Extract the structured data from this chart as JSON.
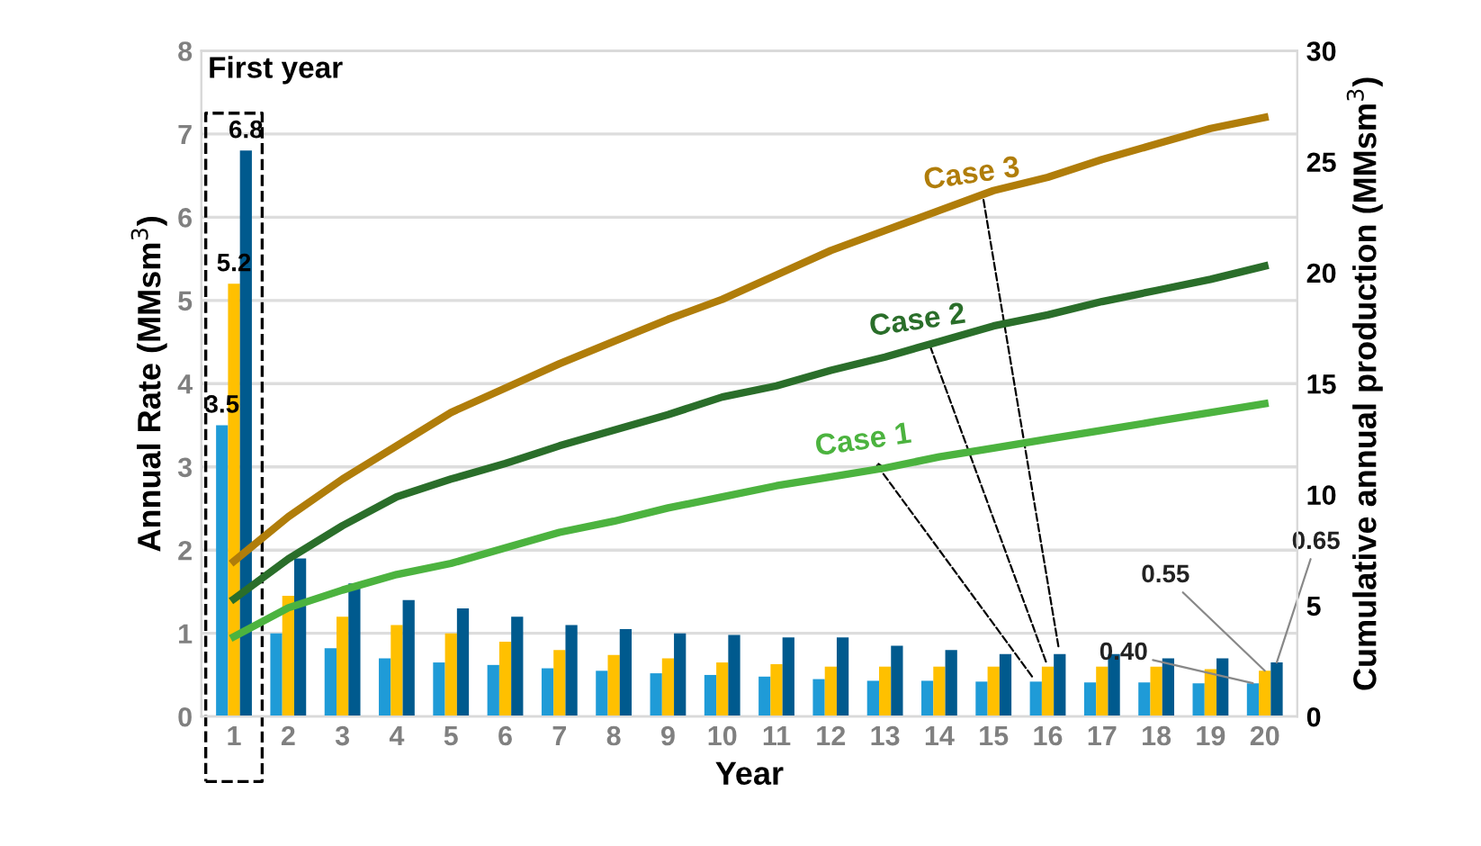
{
  "chart_data": {
    "type": "bar",
    "xlabel": "Year",
    "ylabel": "Annual Rate (MMsm$^{3}$)",
    "y2label": "Cumulative annual production (MMsm$^{3}$)",
    "categories": [
      "1",
      "2",
      "3",
      "4",
      "5",
      "6",
      "7",
      "8",
      "9",
      "10",
      "11",
      "12",
      "13",
      "14",
      "15",
      "16",
      "17",
      "18",
      "19",
      "20"
    ],
    "series": [
      {
        "color": "#1f9bd7",
        "values": [
          3.5,
          1.0,
          0.82,
          0.7,
          0.65,
          0.62,
          0.58,
          0.55,
          0.52,
          0.5,
          0.48,
          0.45,
          0.43,
          0.43,
          0.42,
          0.42,
          0.41,
          0.41,
          0.4,
          0.4
        ],
        "value_labels": [
          "3.5",
          null,
          null,
          null,
          null,
          null,
          null,
          null,
          null,
          null,
          null,
          null,
          null,
          null,
          null,
          null,
          null,
          null,
          null,
          "0.40"
        ]
      },
      {
        "color": "#ffc000",
        "values": [
          5.2,
          1.45,
          1.2,
          1.1,
          1.0,
          0.9,
          0.8,
          0.74,
          0.7,
          0.65,
          0.63,
          0.6,
          0.6,
          0.6,
          0.6,
          0.6,
          0.6,
          0.6,
          0.57,
          0.55
        ],
        "value_labels": [
          "5.2",
          null,
          null,
          null,
          null,
          null,
          null,
          null,
          null,
          null,
          null,
          null,
          null,
          null,
          null,
          null,
          null,
          null,
          null,
          "0.55"
        ]
      },
      {
        "color": "#005a8e",
        "values": [
          6.8,
          1.9,
          1.6,
          1.4,
          1.3,
          1.2,
          1.1,
          1.05,
          1.0,
          0.98,
          0.95,
          0.95,
          0.85,
          0.8,
          0.75,
          0.75,
          0.75,
          0.7,
          0.7,
          0.65
        ],
        "value_labels": [
          "6.8",
          null,
          null,
          null,
          null,
          null,
          null,
          null,
          null,
          null,
          null,
          null,
          null,
          null,
          null,
          null,
          null,
          null,
          null,
          "0.65"
        ]
      },
      {
        "type": "line",
        "axis": "y2",
        "name": "Case 1",
        "color": "#4cb33f",
        "values": [
          3.6,
          4.9,
          5.7,
          6.4,
          6.9,
          7.6,
          8.3,
          8.8,
          9.4,
          9.9,
          10.4,
          10.8,
          11.2,
          11.7,
          12.1,
          12.5,
          12.9,
          13.3,
          13.7,
          14.1
        ]
      },
      {
        "type": "line",
        "axis": "y2",
        "name": "Case 2",
        "color": "#2a6e2a",
        "values": [
          5.3,
          7.1,
          8.6,
          9.9,
          10.7,
          11.4,
          12.2,
          12.9,
          13.6,
          14.4,
          14.9,
          15.6,
          16.2,
          16.9,
          17.6,
          18.1,
          18.7,
          19.2,
          19.7,
          20.3
        ]
      },
      {
        "type": "line",
        "axis": "y2",
        "name": "Case 3",
        "color": "#b07d0a",
        "values": [
          7.0,
          9.0,
          10.7,
          12.2,
          13.7,
          14.8,
          15.9,
          16.9,
          17.9,
          18.8,
          19.9,
          21.0,
          21.9,
          22.8,
          23.7,
          24.3,
          25.1,
          25.8,
          26.5,
          27.0
        ]
      }
    ],
    "ylim": [
      0,
      8
    ],
    "yticks": [
      0,
      1,
      2,
      3,
      4,
      5,
      6,
      7,
      8
    ],
    "y2lim": [
      0,
      30
    ],
    "y2ticks": [
      0,
      5,
      10,
      15,
      20,
      25,
      30
    ],
    "grid": "y",
    "line_style": "solid",
    "annotations": [
      "First year"
    ]
  }
}
